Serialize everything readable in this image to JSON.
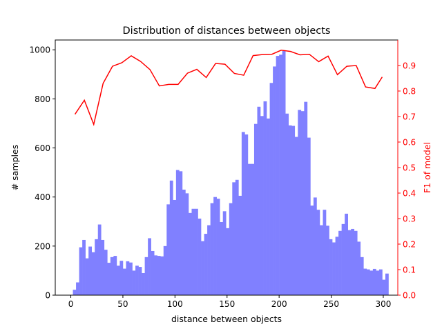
{
  "chart_data": {
    "type": "bar",
    "title": "Distribution of distances between objects",
    "xlabel": "distance between objects",
    "ylabel": "# samples",
    "y2label": "F1 of model",
    "xlim": [
      -14.95,
      313.95
    ],
    "ylim": [
      0,
      1040
    ],
    "y2lim": [
      0,
      1.0
    ],
    "xticks": [
      0,
      50,
      100,
      150,
      200,
      250,
      300
    ],
    "yticks": [
      0,
      200,
      400,
      600,
      800,
      1000
    ],
    "y2ticks": [
      0.0,
      0.1,
      0.2,
      0.3,
      0.4,
      0.5,
      0.6,
      0.7,
      0.8,
      0.9
    ],
    "grid": false,
    "legend": "none",
    "bar_color": "#8080ff",
    "line_color": "#ff0000",
    "histogram": {
      "name": "# samples",
      "bin_start": 2,
      "bin_width": 3,
      "counts": [
        22,
        52,
        195,
        225,
        150,
        198,
        175,
        228,
        288,
        225,
        185,
        132,
        155,
        160,
        120,
        140,
        108,
        138,
        133,
        100,
        120,
        115,
        90,
        155,
        232,
        180,
        162,
        160,
        158,
        200,
        370,
        467,
        388,
        510,
        505,
        430,
        415,
        335,
        352,
        352,
        312,
        220,
        250,
        285,
        375,
        400,
        393,
        298,
        342,
        273,
        375,
        460,
        470,
        405,
        665,
        655,
        535,
        535,
        698,
        768,
        730,
        790,
        720,
        865,
        932,
        975,
        980,
        995,
        740,
        692,
        690,
        645,
        755,
        750,
        788,
        642,
        365,
        398,
        348,
        285,
        348,
        283,
        228,
        215,
        238,
        262,
        290,
        332,
        265,
        270,
        262,
        218,
        155,
        108,
        105,
        100,
        107,
        100,
        105,
        63,
        88
      ]
    },
    "f1_line": {
      "name": "F1 of model",
      "x": [
        4,
        13,
        22,
        31,
        40,
        49,
        58,
        67,
        76,
        85,
        94,
        103,
        112,
        121,
        130,
        139,
        148,
        157,
        166,
        175,
        184,
        193,
        202,
        211,
        220,
        229,
        238,
        247,
        256,
        265,
        274,
        283,
        292,
        299
      ],
      "y": [
        0.709,
        0.764,
        0.669,
        0.83,
        0.897,
        0.911,
        0.938,
        0.916,
        0.884,
        0.82,
        0.826,
        0.826,
        0.87,
        0.885,
        0.853,
        0.908,
        0.905,
        0.869,
        0.862,
        0.939,
        0.943,
        0.944,
        0.96,
        0.955,
        0.942,
        0.944,
        0.915,
        0.937,
        0.864,
        0.897,
        0.9,
        0.816,
        0.81,
        0.855
      ]
    }
  }
}
